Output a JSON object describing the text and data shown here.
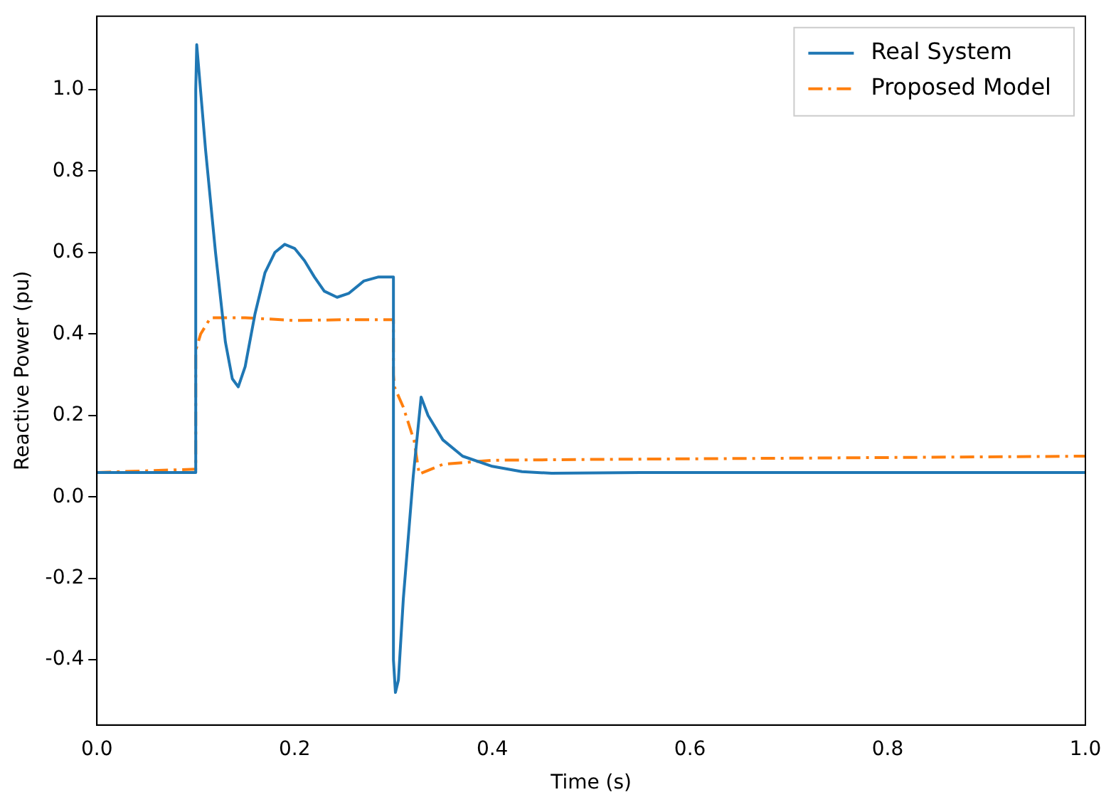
{
  "chart_data": {
    "type": "line",
    "xlabel": "Time (s)",
    "ylabel": "Reactive Power (pu)",
    "xlim": [
      0,
      1
    ],
    "ylim": [
      -0.56,
      1.18
    ],
    "xticks": [
      {
        "value": 0,
        "label": "0.0"
      },
      {
        "value": 0.2,
        "label": "0.2"
      },
      {
        "value": 0.4,
        "label": "0.4"
      },
      {
        "value": 0.6,
        "label": "0.6"
      },
      {
        "value": 0.8,
        "label": "0.8"
      },
      {
        "value": 1,
        "label": "1.0"
      }
    ],
    "yticks": [
      -0.4,
      -0.2,
      {
        "value": 0,
        "label": "0.0"
      },
      0.2,
      0.4,
      0.6,
      0.8,
      {
        "value": 1,
        "label": "1.0"
      }
    ],
    "grid": false,
    "legend": "top right",
    "marker": "none",
    "series": [
      {
        "name": "Real System",
        "color": "#1f77b4",
        "line_style": "solid",
        "x": [
          0,
          0.1,
          0.1,
          0.101,
          0.11,
          0.12,
          0.13,
          0.137,
          0.143,
          0.15,
          0.16,
          0.17,
          0.18,
          0.19,
          0.2,
          0.21,
          0.22,
          0.23,
          0.243,
          0.255,
          0.27,
          0.285,
          0.3,
          0.3,
          0.302,
          0.305,
          0.31,
          0.32,
          0.328,
          0.335,
          0.35,
          0.37,
          0.4,
          0.43,
          0.46,
          0.55,
          1
        ],
        "values": [
          0.06,
          0.06,
          1,
          1.11,
          0.85,
          0.6,
          0.38,
          0.29,
          0.27,
          0.32,
          0.45,
          0.55,
          0.6,
          0.62,
          0.61,
          0.58,
          0.54,
          0.505,
          0.49,
          0.5,
          0.53,
          0.54,
          0.54,
          -0.4,
          -0.48,
          -0.45,
          -0.25,
          0.05,
          0.245,
          0.2,
          0.14,
          0.1,
          0.075,
          0.062,
          0.058,
          0.06,
          0.06
        ]
      },
      {
        "name": "Proposed Model",
        "color": "#ff7f0e",
        "line_style": "dashdot",
        "x": [
          0,
          0.1,
          0.1,
          0.105,
          0.115,
          0.15,
          0.2,
          0.25,
          0.3,
          0.3,
          0.301,
          0.31,
          0.321,
          0.326,
          0.35,
          0.4,
          0.5,
          0.7,
          1
        ],
        "values": [
          0.06,
          0.068,
          0.36,
          0.4,
          0.44,
          0.44,
          0.433,
          0.435,
          0.435,
          0.3,
          0.27,
          0.22,
          0.137,
          0.056,
          0.08,
          0.09,
          0.092,
          0.095,
          0.1
        ]
      }
    ]
  }
}
